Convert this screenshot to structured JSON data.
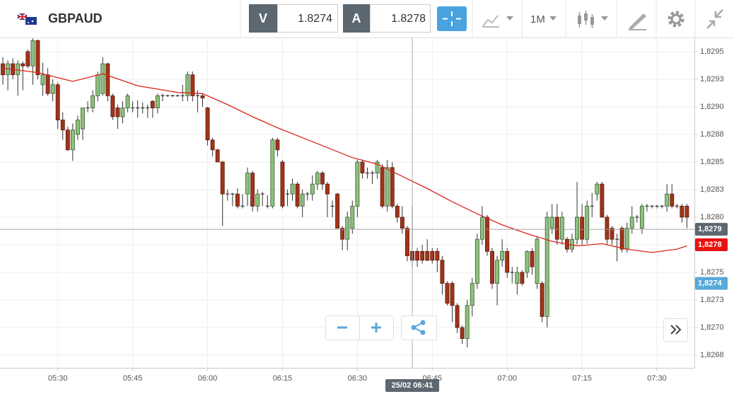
{
  "toolbar": {
    "symbol": "GBPAUD",
    "bid_label": "V",
    "bid": "1.8274",
    "ask_label": "A",
    "ask": "1.8278",
    "timeframe": "1M"
  },
  "chart_data": {
    "type": "candlestick",
    "candles": [
      [
        1.82939,
        1.82945,
        1.8292,
        1.82929
      ],
      [
        1.82929,
        1.82942,
        1.82915,
        1.82939
      ],
      [
        1.82939,
        1.82944,
        1.82925,
        1.82929
      ],
      [
        1.82929,
        1.82942,
        1.8291,
        1.82939
      ],
      [
        1.82939,
        1.82941,
        1.82915,
        1.82937
      ],
      [
        1.8295,
        1.82952,
        1.82935,
        1.82937
      ],
      [
        1.82937,
        1.82962,
        1.8292,
        1.8296
      ],
      [
        1.8296,
        1.82961,
        1.82925,
        1.82929
      ],
      [
        1.8292,
        1.8294,
        1.8291,
        1.82929
      ],
      [
        1.82929,
        1.82935,
        1.8291,
        1.82912
      ],
      [
        1.82912,
        1.82925,
        1.82905,
        1.8292
      ],
      [
        1.8292,
        1.82922,
        1.8288,
        1.82888
      ],
      [
        1.82888,
        1.82895,
        1.8287,
        1.82879
      ],
      [
        1.82879,
        1.82882,
        1.8286,
        1.82861
      ],
      [
        1.82861,
        1.82885,
        1.82851,
        1.82879
      ],
      [
        1.82875,
        1.82892,
        1.8287,
        1.82888
      ],
      [
        1.8288,
        1.82899,
        1.8287,
        1.82899
      ],
      [
        1.82899,
        1.82905,
        1.82895,
        1.82899
      ],
      [
        1.82899,
        1.82915,
        1.82895,
        1.8291
      ],
      [
        1.8291,
        1.82932,
        1.82905,
        1.82929
      ],
      [
        1.82912,
        1.82945,
        1.8291,
        1.82939
      ],
      [
        1.82939,
        1.8294,
        1.82905,
        1.8291
      ],
      [
        1.8291,
        1.82912,
        1.82888,
        1.82891
      ],
      [
        1.82899,
        1.82902,
        1.8288,
        1.82891
      ],
      [
        1.82891,
        1.82905,
        1.82885,
        1.82899
      ],
      [
        1.82899,
        1.82912,
        1.82895,
        1.8291
      ],
      [
        1.82899,
        1.82905,
        1.82895,
        1.82899
      ],
      [
        1.82899,
        1.82906,
        1.8289,
        1.82899
      ],
      [
        1.82899,
        1.82904,
        1.82894,
        1.82899
      ],
      [
        1.82899,
        1.82902,
        1.8289,
        1.82899
      ],
      [
        1.82905,
        1.82906,
        1.8289,
        1.82899
      ],
      [
        1.82899,
        1.82912,
        1.82894,
        1.8291
      ],
      [
        1.8291,
        1.82912,
        1.82905,
        1.8291
      ],
      [
        1.8291,
        1.82911,
        1.82909,
        1.8291
      ],
      [
        1.8291,
        1.82911,
        1.82909,
        1.8291
      ],
      [
        1.8291,
        1.82911,
        1.82909,
        1.8291
      ],
      [
        1.8291,
        1.8292,
        1.82905,
        1.8291
      ],
      [
        1.8291,
        1.82932,
        1.82905,
        1.82929
      ],
      [
        1.82929,
        1.82932,
        1.82905,
        1.8291
      ],
      [
        1.8291,
        1.82915,
        1.82895,
        1.8291
      ],
      [
        1.8291,
        1.82912,
        1.829,
        1.82908
      ],
      [
        1.82899,
        1.829,
        1.82865,
        1.8287
      ],
      [
        1.8287,
        1.82872,
        1.82855,
        1.82861
      ],
      [
        1.82861,
        1.82862,
        1.8285,
        1.8285
      ],
      [
        1.8285,
        1.82851,
        1.82792,
        1.82821
      ],
      [
        1.82821,
        1.82825,
        1.82815,
        1.82821
      ],
      [
        1.82821,
        1.82822,
        1.8281,
        1.82821
      ],
      [
        1.82821,
        1.82826,
        1.82808,
        1.8281
      ],
      [
        1.8281,
        1.82821,
        1.82808,
        1.8281
      ],
      [
        1.82821,
        1.82845,
        1.8281,
        1.8284
      ],
      [
        1.8284,
        1.82842,
        1.82805,
        1.8281
      ],
      [
        1.8281,
        1.82825,
        1.82805,
        1.82821
      ],
      [
        1.82821,
        1.82823,
        1.8281,
        1.82821
      ],
      [
        1.8281,
        1.8282,
        1.82808,
        1.8281
      ],
      [
        1.8281,
        1.82872,
        1.82808,
        1.8287
      ],
      [
        1.8287,
        1.82872,
        1.82855,
        1.82861
      ],
      [
        1.8285,
        1.82852,
        1.82808,
        1.8281
      ],
      [
        1.82821,
        1.82825,
        1.8281,
        1.82821
      ],
      [
        1.82821,
        1.82835,
        1.82815,
        1.8283
      ],
      [
        1.8283,
        1.82832,
        1.82808,
        1.8281
      ],
      [
        1.8281,
        1.82825,
        1.828,
        1.82821
      ],
      [
        1.82821,
        1.82823,
        1.82815,
        1.82821
      ],
      [
        1.82821,
        1.82838,
        1.82815,
        1.8283
      ],
      [
        1.8283,
        1.82842,
        1.82825,
        1.8284
      ],
      [
        1.8284,
        1.82842,
        1.82825,
        1.8283
      ],
      [
        1.8283,
        1.82832,
        1.828,
        1.82821
      ],
      [
        1.8281,
        1.82815,
        1.828,
        1.8281
      ],
      [
        1.82821,
        1.82822,
        1.8279,
        1.8279
      ],
      [
        1.8279,
        1.82792,
        1.8277,
        1.8278
      ],
      [
        1.8278,
        1.82805,
        1.8277,
        1.828
      ],
      [
        1.8279,
        1.82815,
        1.82785,
        1.8281
      ],
      [
        1.8281,
        1.82852,
        1.828,
        1.8285
      ],
      [
        1.8285,
        1.82852,
        1.82835,
        1.8284
      ],
      [
        1.8284,
        1.82845,
        1.82835,
        1.8284
      ],
      [
        1.8284,
        1.82842,
        1.8283,
        1.8284
      ],
      [
        1.8284,
        1.82852,
        1.82835,
        1.8285
      ],
      [
        1.82845,
        1.82848,
        1.82808,
        1.8281
      ],
      [
        1.8281,
        1.82852,
        1.82805,
        1.82845
      ],
      [
        1.82845,
        1.8285,
        1.82808,
        1.8281
      ],
      [
        1.8281,
        1.82812,
        1.82795,
        1.828
      ],
      [
        1.828,
        1.8281,
        1.82785,
        1.8279
      ],
      [
        1.8279,
        1.82792,
        1.8276,
        1.82765
      ],
      [
        1.82769,
        1.8281,
        1.82755,
        1.82761
      ],
      [
        1.82769,
        1.82772,
        1.82755,
        1.82761
      ],
      [
        1.82769,
        1.82775,
        1.82758,
        1.82761
      ],
      [
        1.82769,
        1.8278,
        1.8276,
        1.82761
      ],
      [
        1.82769,
        1.82772,
        1.82758,
        1.82761
      ],
      [
        1.82769,
        1.82772,
        1.8275,
        1.82761
      ],
      [
        1.82761,
        1.82765,
        1.8273,
        1.8274
      ],
      [
        1.8274,
        1.82742,
        1.8272,
        1.82722
      ],
      [
        1.8274,
        1.82742,
        1.82705,
        1.8272
      ],
      [
        1.8272,
        1.82722,
        1.82695,
        1.827
      ],
      [
        1.827,
        1.82702,
        1.82685,
        1.8269
      ],
      [
        1.8269,
        1.82725,
        1.82682,
        1.8272
      ],
      [
        1.8272,
        1.82745,
        1.8271,
        1.8274
      ],
      [
        1.8274,
        1.82785,
        1.82735,
        1.8278
      ],
      [
        1.8278,
        1.8281,
        1.82775,
        1.828
      ],
      [
        1.828,
        1.82802,
        1.82765,
        1.82769
      ],
      [
        1.82769,
        1.82772,
        1.82735,
        1.8274
      ],
      [
        1.8274,
        1.82765,
        1.8272,
        1.82761
      ],
      [
        1.82761,
        1.8278,
        1.82755,
        1.82769
      ],
      [
        1.82769,
        1.82772,
        1.82745,
        1.8275
      ],
      [
        1.8275,
        1.82755,
        1.8274,
        1.8275
      ],
      [
        1.8274,
        1.82755,
        1.8273,
        1.8275
      ],
      [
        1.8275,
        1.82752,
        1.82738,
        1.8274
      ],
      [
        1.8275,
        1.8277,
        1.82745,
        1.82769
      ],
      [
        1.82769,
        1.82772,
        1.82748,
        1.82755
      ],
      [
        1.8274,
        1.82782,
        1.82735,
        1.8278
      ],
      [
        1.8274,
        1.82742,
        1.82705,
        1.8271
      ],
      [
        1.8271,
        1.82805,
        1.827,
        1.828
      ],
      [
        1.8279,
        1.82812,
        1.82785,
        1.828
      ],
      [
        1.828,
        1.82812,
        1.82775,
        1.8278
      ],
      [
        1.8278,
        1.82805,
        1.82775,
        1.828
      ],
      [
        1.8278,
        1.82782,
        1.82768,
        1.82771
      ],
      [
        1.82771,
        1.82785,
        1.82768,
        1.8278
      ],
      [
        1.8278,
        1.82832,
        1.82775,
        1.828
      ],
      [
        1.828,
        1.82812,
        1.82775,
        1.8278
      ],
      [
        1.8278,
        1.82815,
        1.82776,
        1.8281
      ],
      [
        1.8281,
        1.82822,
        1.828,
        1.8281
      ],
      [
        1.82821,
        1.82832,
        1.82815,
        1.8283
      ],
      [
        1.8283,
        1.82832,
        1.828,
        1.828
      ],
      [
        1.828,
        1.82802,
        1.82775,
        1.8278
      ],
      [
        1.8279,
        1.82792,
        1.82775,
        1.8278
      ],
      [
        1.8278,
        1.82785,
        1.8276,
        1.8278
      ],
      [
        1.8279,
        1.82792,
        1.82768,
        1.82771
      ],
      [
        1.82771,
        1.82795,
        1.82768,
        1.8279
      ],
      [
        1.8279,
        1.8281,
        1.82785,
        1.828
      ],
      [
        1.828,
        1.82802,
        1.82795,
        1.828
      ],
      [
        1.8279,
        1.82812,
        1.82785,
        1.8281
      ],
      [
        1.8281,
        1.82812,
        1.82805,
        1.8281
      ],
      [
        1.8281,
        1.82811,
        1.82808,
        1.8281
      ],
      [
        1.8281,
        1.82811,
        1.82808,
        1.8281
      ],
      [
        1.8281,
        1.82811,
        1.82808,
        1.8281
      ],
      [
        1.8281,
        1.8283,
        1.82805,
        1.82821
      ],
      [
        1.82821,
        1.8283,
        1.82808,
        1.8281
      ],
      [
        1.8281,
        1.82812,
        1.82808,
        1.8281
      ],
      [
        1.8281,
        1.82812,
        1.82795,
        1.828
      ],
      [
        1.8281,
        1.82812,
        1.8279,
        1.828
      ]
    ],
    "up_color": "#8dc07e",
    "down_color": "#a23419",
    "moving_average": {
      "color": "#d9261c",
      "x": [
        0,
        7,
        14,
        20,
        27,
        35,
        40,
        45,
        50,
        55,
        60,
        65,
        70,
        75,
        80,
        85,
        90,
        95,
        100,
        105,
        110,
        115,
        120,
        125,
        130,
        135,
        137
      ],
      "values": [
        1.82935,
        1.82931,
        1.82923,
        1.8293,
        1.82919,
        1.82913,
        1.82912,
        1.82902,
        1.82891,
        1.82881,
        1.82872,
        1.82863,
        1.82854,
        1.82848,
        1.82837,
        1.82826,
        1.82814,
        1.82803,
        1.82793,
        1.82785,
        1.82778,
        1.82774,
        1.82776,
        1.82771,
        1.82768,
        1.82771,
        1.82774
      ]
    },
    "xlim": [
      -0.57,
      138.5
    ],
    "xticks": [
      {
        "value": 11,
        "label": "05:30"
      },
      {
        "value": 26,
        "label": "05:45"
      },
      {
        "value": 41,
        "label": "06:00"
      },
      {
        "value": 56,
        "label": "06:15"
      },
      {
        "value": 71,
        "label": "06:30"
      },
      {
        "value": 86,
        "label": "06:45"
      },
      {
        "value": 101,
        "label": "07:00"
      },
      {
        "value": 116,
        "label": "07:15"
      },
      {
        "value": 131,
        "label": "07:30"
      }
    ],
    "ylim": [
      1.826635,
      1.829628
    ],
    "yticks": [
      {
        "value": 1.8295,
        "label": "1,8295"
      },
      {
        "value": 1.82925,
        "label": "1,8293"
      },
      {
        "value": 1.829,
        "label": "1,8290"
      },
      {
        "value": 1.82875,
        "label": "1,8288"
      },
      {
        "value": 1.8285,
        "label": "1,8285"
      },
      {
        "value": 1.82825,
        "label": "1,8283"
      },
      {
        "value": 1.828,
        "label": "1,8280"
      },
      {
        "value": 1.82775,
        "label": "1,8278"
      },
      {
        "value": 1.8275,
        "label": "1,8275"
      },
      {
        "value": 1.82725,
        "label": "1,8273"
      },
      {
        "value": 1.827,
        "label": "1,8270"
      },
      {
        "value": 1.82675,
        "label": "1,8268"
      }
    ],
    "grid": true,
    "crosshair": {
      "x": 82,
      "y": 1.82789,
      "y_label": "1,8279",
      "x_label": "25/02 06:41"
    },
    "price_tags": [
      {
        "value": 1.82775,
        "label": "1,8278",
        "color": "#e8110f"
      },
      {
        "value": 1.8274,
        "label": "1,8274",
        "color": "#58a9d9"
      }
    ]
  }
}
